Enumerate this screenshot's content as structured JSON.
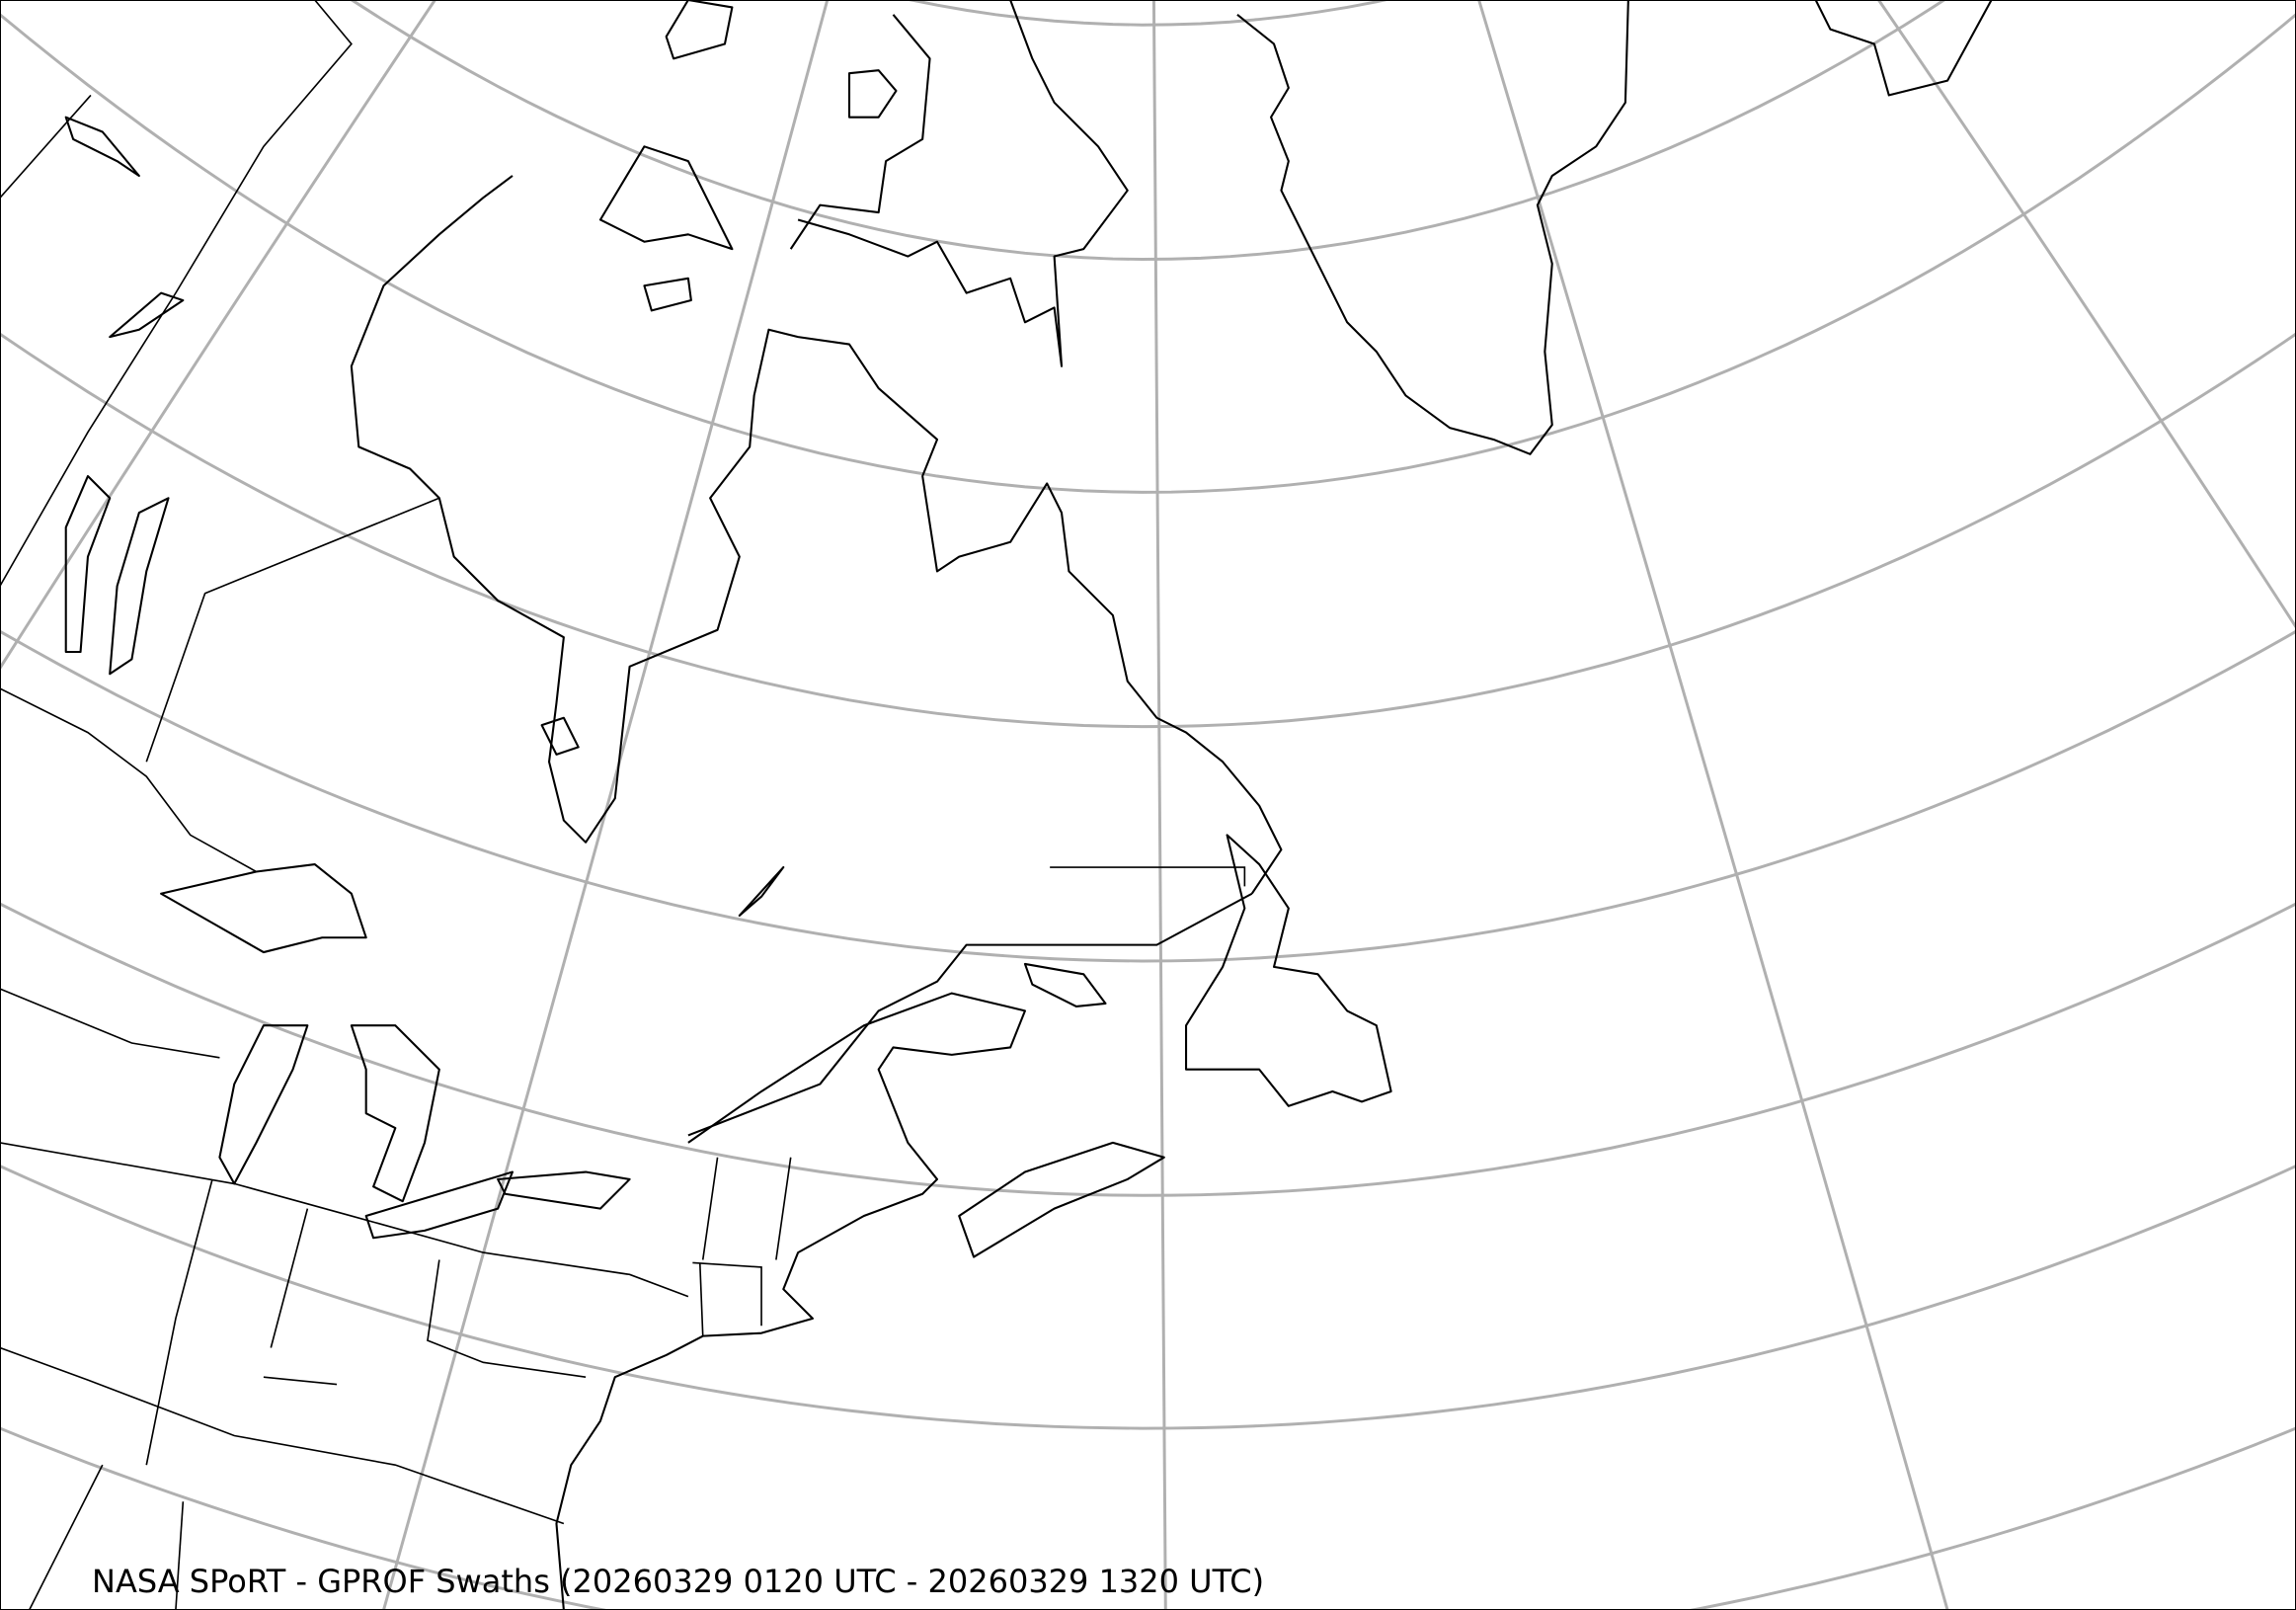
{
  "map": {
    "title": "NASA SPoRT - GPROF Swaths (20260329 0120 UTC - 20260329 1320 UTC)",
    "region": "Northeastern North America, Greenland and North Atlantic",
    "layers": [
      "coastlines",
      "political-borders",
      "graticule"
    ],
    "colors": {
      "background": "#ffffff",
      "coastline": "#000000",
      "graticule": "#b0b0b0"
    }
  }
}
